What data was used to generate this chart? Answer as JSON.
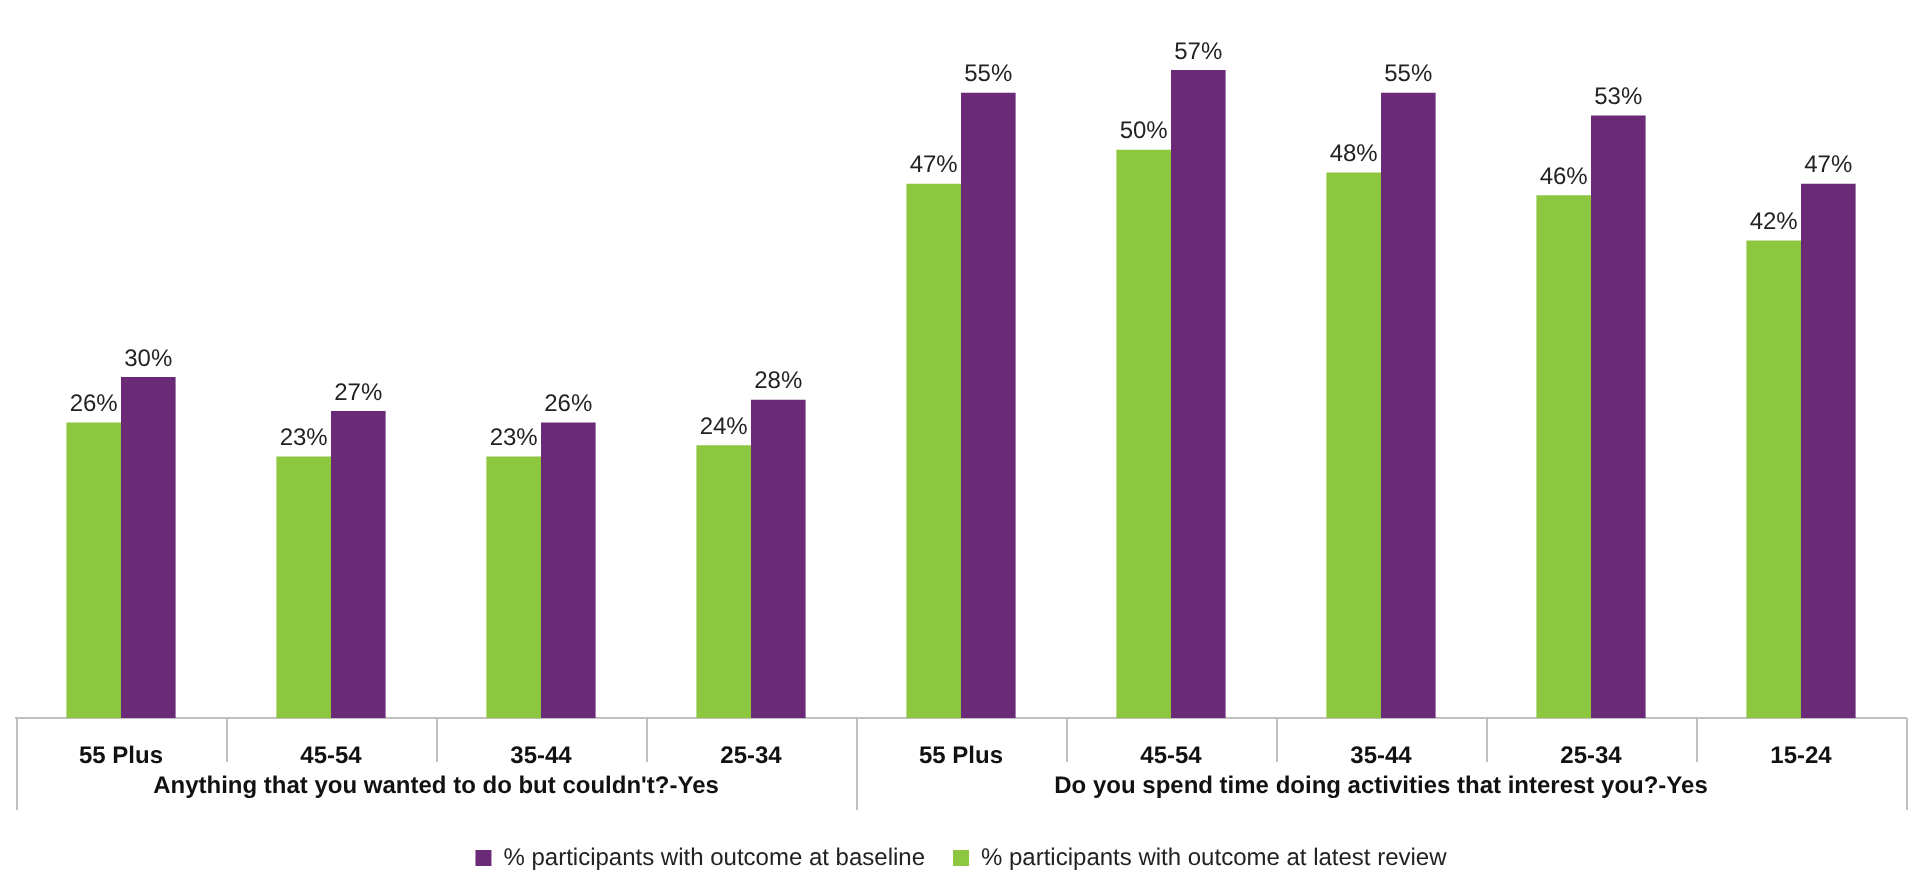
{
  "chart_data": {
    "type": "bar",
    "categories": [
      "55 Plus",
      "45-54",
      "35-44",
      "25-34",
      "55 Plus",
      "45-54",
      "35-44",
      "25-34",
      "15-24"
    ],
    "series": [
      {
        "name": "% participants with outcome at latest review",
        "color": "#8dc63f",
        "values": [
          26,
          23,
          23,
          24,
          47,
          50,
          48,
          46,
          42
        ],
        "value_labels": [
          "26%",
          "23%",
          "23%",
          "24%",
          "47%",
          "50%",
          "48%",
          "46%",
          "42%"
        ]
      },
      {
        "name": "% participants with outcome at baseline",
        "color": "#6b2a77",
        "values": [
          30,
          27,
          26,
          28,
          55,
          57,
          55,
          53,
          47
        ],
        "value_labels": [
          "30%",
          "27%",
          "26%",
          "28%",
          "55%",
          "57%",
          "55%",
          "53%",
          "47%"
        ]
      }
    ],
    "annotations": [
      "Anything that you wanted to do but couldn't?-Yes",
      "Do you spend time doing activities that interest you?-Yes"
    ],
    "legend": "bottom"
  }
}
